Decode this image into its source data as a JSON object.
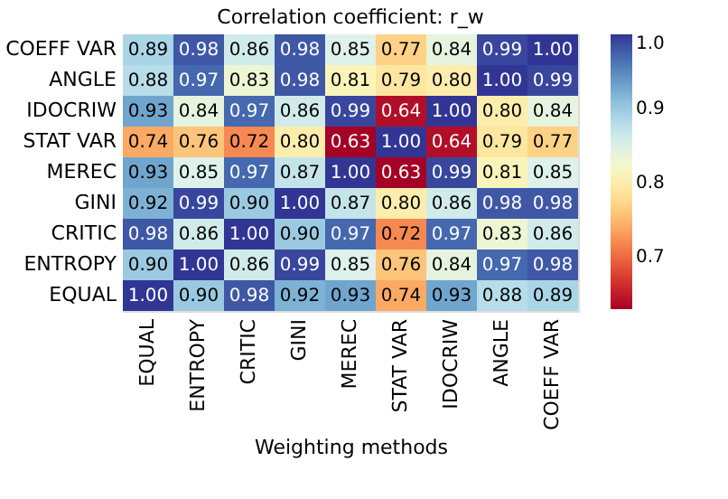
{
  "chart_data": {
    "type": "heatmap",
    "title": "Correlation coefficient: r_w",
    "xlabel": "Weighting methods",
    "categories": [
      "EQUAL",
      "ENTROPY",
      "CRITIC",
      "GINI",
      "MEREC",
      "STAT VAR",
      "IDOCRIW",
      "ANGLE",
      "COEFF VAR"
    ],
    "y_categories": [
      "COEFF VAR",
      "ANGLE",
      "IDOCRIW",
      "STAT VAR",
      "MEREC",
      "GINI",
      "CRITIC",
      "ENTROPY",
      "EQUAL"
    ],
    "cells": [
      [
        0.89,
        0.98,
        0.86,
        0.98,
        0.85,
        0.77,
        0.84,
        0.99,
        1.0
      ],
      [
        0.88,
        0.97,
        0.83,
        0.98,
        0.81,
        0.79,
        0.8,
        1.0,
        0.99
      ],
      [
        0.93,
        0.84,
        0.97,
        0.86,
        0.99,
        0.64,
        1.0,
        0.8,
        0.84
      ],
      [
        0.74,
        0.76,
        0.72,
        0.8,
        0.63,
        1.0,
        0.64,
        0.79,
        0.77
      ],
      [
        0.93,
        0.85,
        0.97,
        0.87,
        1.0,
        0.63,
        0.99,
        0.81,
        0.85
      ],
      [
        0.92,
        0.99,
        0.9,
        1.0,
        0.87,
        0.8,
        0.86,
        0.98,
        0.98
      ],
      [
        0.98,
        0.86,
        1.0,
        0.9,
        0.97,
        0.72,
        0.97,
        0.83,
        0.86
      ],
      [
        0.9,
        1.0,
        0.86,
        0.99,
        0.85,
        0.76,
        0.84,
        0.97,
        0.98
      ],
      [
        1.0,
        0.9,
        0.98,
        0.92,
        0.93,
        0.74,
        0.93,
        0.88,
        0.89
      ]
    ],
    "cell_labels": [
      [
        "0.89",
        "0.98",
        "0.86",
        "0.98",
        "0.85",
        "0.77",
        "0.84",
        "0.99",
        "1.00"
      ],
      [
        "0.88",
        "0.97",
        "0.83",
        "0.98",
        "0.81",
        "0.79",
        "0.80",
        "1.00",
        "0.99"
      ],
      [
        "0.93",
        "0.84",
        "0.97",
        "0.86",
        "0.99",
        "0.64",
        "1.00",
        "0.80",
        "0.84"
      ],
      [
        "0.74",
        "0.76",
        "0.72",
        "0.80",
        "0.63",
        "1.00",
        "0.64",
        "0.79",
        "0.77"
      ],
      [
        "0.93",
        "0.85",
        "0.97",
        "0.87",
        "1.00",
        "0.63",
        "0.99",
        "0.81",
        "0.85"
      ],
      [
        "0.92",
        "0.99",
        "0.90",
        "1.00",
        "0.87",
        "0.80",
        "0.86",
        "0.98",
        "0.98"
      ],
      [
        "0.98",
        "0.86",
        "1.00",
        "0.90",
        "0.97",
        "0.72",
        "0.97",
        "0.83",
        "0.86"
      ],
      [
        "0.90",
        "1.00",
        "0.86",
        "0.99",
        "0.85",
        "0.76",
        "0.84",
        "0.97",
        "0.98"
      ],
      [
        "1.00",
        "0.90",
        "0.98",
        "0.92",
        "0.93",
        "0.74",
        "0.93",
        "0.88",
        "0.89"
      ]
    ],
    "clim": [
      0.63,
      1.0
    ],
    "cticks": [
      {
        "value": 0.7,
        "label": "0.7"
      },
      {
        "value": 0.8,
        "label": "0.8"
      },
      {
        "value": 0.9,
        "label": "0.9"
      },
      {
        "value": 1.0,
        "label": "1.0"
      }
    ],
    "data_labels": true
  }
}
